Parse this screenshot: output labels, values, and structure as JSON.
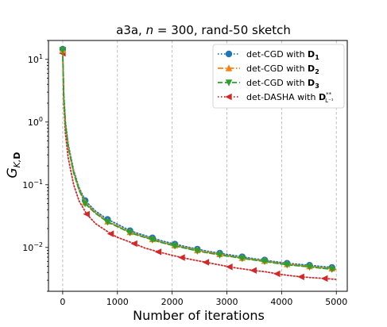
{
  "chart_data": {
    "type": "line",
    "title": "a3a, n = 300, rand-50 sketch",
    "xlabel": "Number of iterations",
    "ylabel": "G_{K,D}",
    "xlim": [
      -260,
      5200
    ],
    "ylim": [
      0.002,
      20
    ],
    "yscale": "log",
    "grid": "vertical dashed",
    "legend_position": "top-right",
    "x_ticks": [
      0,
      1000,
      2000,
      3000,
      4000,
      5000
    ],
    "y_ticks": [
      0.01,
      0.1,
      1,
      10
    ],
    "y_tick_labels": [
      "10^-2",
      "10^-1",
      "10^0",
      "10^1"
    ],
    "series": [
      {
        "name": "det-CGD with D_1",
        "color": "#1f77b4",
        "marker": "circle",
        "linestyle": "dotted",
        "x": [
          0,
          20,
          50,
          100,
          200,
          300,
          410,
          600,
          820,
          1000,
          1230,
          1400,
          1640,
          1800,
          2050,
          2250,
          2460,
          2650,
          2870,
          3100,
          3280,
          3500,
          3690,
          3900,
          4100,
          4300,
          4510,
          4700,
          4920,
          4990
        ],
        "y": [
          14.5,
          2.8,
          1.0,
          0.45,
          0.17,
          0.09,
          0.056,
          0.038,
          0.028,
          0.0235,
          0.0185,
          0.0165,
          0.0142,
          0.0128,
          0.0113,
          0.0103,
          0.0094,
          0.0087,
          0.0081,
          0.0075,
          0.0071,
          0.0066,
          0.0063,
          0.0059,
          0.0056,
          0.0054,
          0.0052,
          0.005,
          0.0048,
          0.0047
        ]
      },
      {
        "name": "det-CGD with D_2",
        "color": "#ff7f0e",
        "marker": "triangle-up",
        "linestyle": "dashdot",
        "x": [
          0,
          20,
          50,
          100,
          200,
          300,
          410,
          600,
          820,
          1000,
          1230,
          1400,
          1640,
          1800,
          2050,
          2250,
          2460,
          2650,
          2870,
          3100,
          3280,
          3500,
          3690,
          3900,
          4100,
          4300,
          4510,
          4700,
          4920,
          4990
        ],
        "y": [
          14.0,
          2.6,
          0.95,
          0.42,
          0.16,
          0.085,
          0.052,
          0.036,
          0.026,
          0.022,
          0.0175,
          0.0157,
          0.0135,
          0.0122,
          0.0108,
          0.0099,
          0.009,
          0.0084,
          0.0078,
          0.0072,
          0.0068,
          0.0064,
          0.0061,
          0.0057,
          0.0054,
          0.0052,
          0.005,
          0.0048,
          0.0046,
          0.0045
        ]
      },
      {
        "name": "det-CGD with D_3",
        "color": "#2ca02c",
        "marker": "triangle-down",
        "linestyle": "dashed",
        "x": [
          0,
          20,
          50,
          100,
          200,
          300,
          410,
          600,
          820,
          1000,
          1230,
          1400,
          1640,
          1800,
          2050,
          2250,
          2460,
          2650,
          2870,
          3100,
          3280,
          3500,
          3690,
          3900,
          4100,
          4300,
          4510,
          4700,
          4920,
          4990
        ],
        "y": [
          14.2,
          2.5,
          0.92,
          0.4,
          0.155,
          0.082,
          0.05,
          0.035,
          0.0255,
          0.0215,
          0.0172,
          0.0154,
          0.0133,
          0.012,
          0.0106,
          0.0097,
          0.0088,
          0.0082,
          0.0076,
          0.0071,
          0.0067,
          0.0063,
          0.006,
          0.0056,
          0.0053,
          0.0051,
          0.0049,
          0.0047,
          0.0045,
          0.0044
        ]
      },
      {
        "name": "det-DASHA with D_{L^-1}^{**}",
        "color": "#d62728",
        "marker": "triangle-left",
        "linestyle": "dotted",
        "x": [
          0,
          20,
          50,
          100,
          200,
          300,
          440,
          600,
          880,
          1000,
          1310,
          1500,
          1750,
          2000,
          2180,
          2400,
          2620,
          2800,
          3050,
          3250,
          3490,
          3700,
          3920,
          4100,
          4360,
          4550,
          4790,
          4990
        ],
        "y": [
          12.5,
          1.9,
          0.65,
          0.27,
          0.1,
          0.055,
          0.034,
          0.024,
          0.0165,
          0.0145,
          0.0115,
          0.0098,
          0.0085,
          0.0075,
          0.0069,
          0.0063,
          0.0058,
          0.0054,
          0.0049,
          0.0046,
          0.0043,
          0.0041,
          0.0038,
          0.0036,
          0.0034,
          0.0033,
          0.0032,
          0.0031
        ]
      }
    ],
    "marker_x": [
      [
        0,
        410,
        820,
        1230,
        1640,
        2050,
        2460,
        2870,
        3280,
        3690,
        4100,
        4510,
        4920
      ],
      [
        0,
        410,
        820,
        1230,
        1640,
        2050,
        2460,
        2870,
        3280,
        3690,
        4100,
        4510,
        4920
      ],
      [
        0,
        410,
        820,
        1230,
        1640,
        2050,
        2460,
        2870,
        3280,
        3690,
        4100,
        4510,
        4920
      ],
      [
        0,
        440,
        880,
        1310,
        1750,
        2180,
        2620,
        3050,
        3490,
        3920,
        4360,
        4790
      ]
    ]
  }
}
